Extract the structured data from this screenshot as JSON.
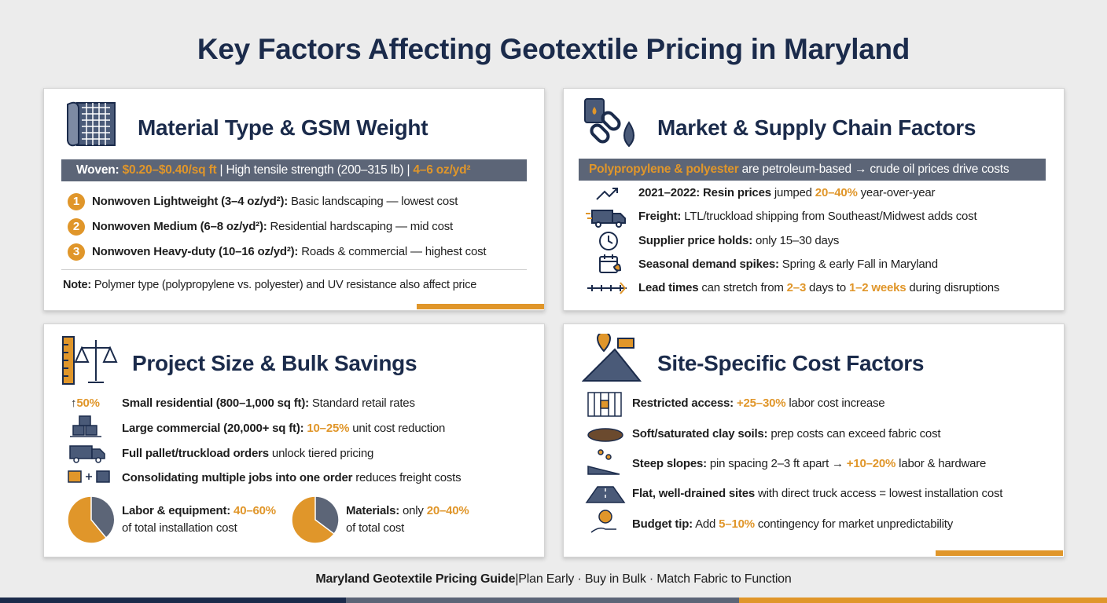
{
  "title": "Key Factors Affecting Geotextile Pricing in Maryland",
  "panels": [
    {
      "heading": "Material Type & GSM Weight",
      "banner": [
        "Woven:",
        " $0.20–$0.40/sq ft",
        " | ",
        "High tensile strength (200–315 lb)",
        " | ",
        "4–6 oz/yd²"
      ],
      "items": [
        {
          "number": "1",
          "segments": [
            "Nonwoven Lightweight (3–4 oz/yd²):",
            " Basic landscaping — lowest cost"
          ]
        },
        {
          "number": "2",
          "segments": [
            "Nonwoven Medium (6–8 oz/yd²):",
            " Residential hardscaping — mid cost"
          ]
        },
        {
          "number": "3",
          "segments": [
            "Nonwoven Heavy-duty (10–16 oz/yd²):",
            " Roads & commercial — highest cost"
          ]
        }
      ],
      "note": [
        "Note:",
        " Polymer type (polypropylene vs. polyester) and UV resistance also affect price"
      ]
    },
    {
      "heading": "Market & Supply Chain Factors",
      "banner": [
        "Polypropylene & polyester",
        " are petroleum-based → crude oil prices drive costs"
      ],
      "items": [
        [
          "2021–2022: Resin prices",
          " jumped ",
          "20–40%",
          " year-over-year"
        ],
        [
          "Freight:",
          " LTL/truckload shipping from Southeast/Midwest adds cost"
        ],
        [
          "Supplier price holds:",
          " only 15–30 days"
        ],
        [
          "Seasonal demand spikes:",
          " Spring & early Fall in Maryland"
        ],
        [
          "Lead times",
          " can stretch from ",
          "2–3",
          " days to ",
          "1–2 weeks",
          " during disruptions"
        ]
      ]
    },
    {
      "heading": "Project Size & Bulk Savings",
      "badge": [
        "↑",
        "50%"
      ],
      "items": [
        [
          "Small residential (800–1,000 sq ft):",
          " Standard retail rates"
        ],
        [
          "Large commercial (20,000+ sq ft): ",
          "10–25%",
          " unit cost reduction"
        ],
        [
          "Full pallet/truckload orders",
          " unlock tiered pricing"
        ],
        [
          "Consolidating multiple jobs into one order",
          " reduces freight costs"
        ]
      ],
      "stats": [
        {
          "line1": [
            "Labor & equipment: ",
            "40–60%"
          ],
          "line2": "of total installation cost"
        },
        {
          "line1": [
            "Materials:",
            " only ",
            "20–40%"
          ],
          "line2": "of total cost"
        }
      ]
    },
    {
      "heading": "Site-Specific Cost Factors",
      "items": [
        [
          "Restricted access: ",
          "+25–30%",
          " labor cost increase"
        ],
        [
          "Soft/saturated clay soils:",
          " prep costs can exceed fabric cost"
        ],
        [
          "Steep slopes:",
          " pin spacing 2–3 ft apart → ",
          "+10–20%",
          " labor & hardware"
        ],
        [
          "Flat, well-drained sites",
          " with direct truck access = lowest installation cost"
        ],
        [
          "Budget tip:",
          " Add ",
          "5–10%",
          " contingency for market unpredictability"
        ]
      ]
    }
  ],
  "footer": [
    "Maryland Geotextile Pricing Guide",
    "|",
    "Plan Early · Buy in Bulk · Match Fabric to Function"
  ]
}
